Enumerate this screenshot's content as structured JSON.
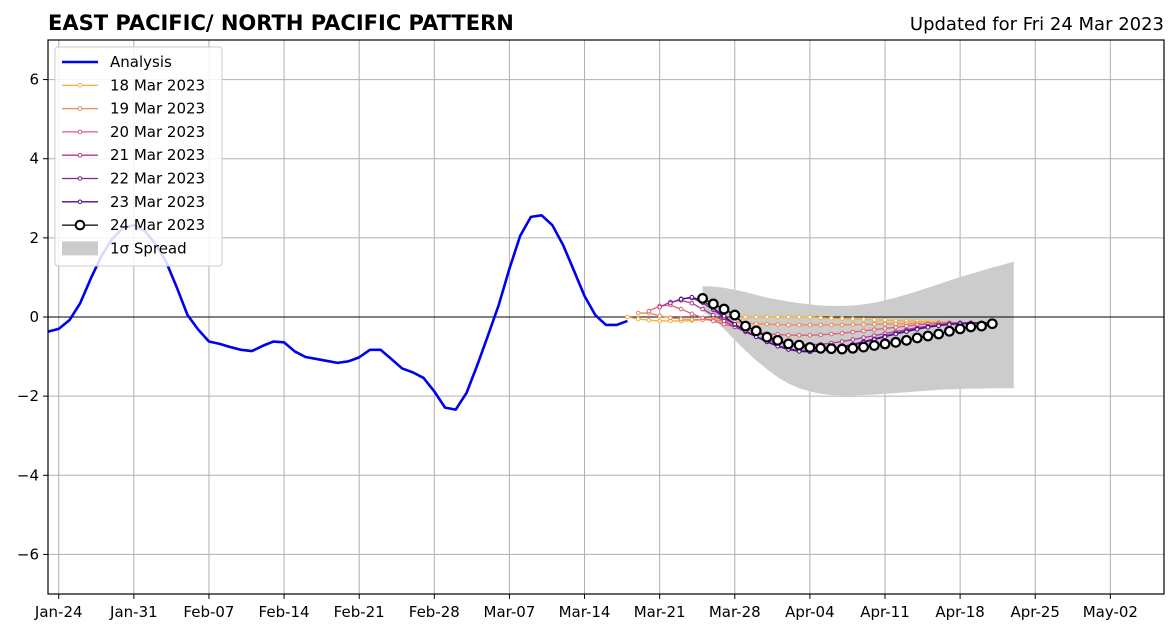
{
  "chart_data": {
    "type": "line",
    "title": "EAST PACIFIC/ NORTH PACIFIC PATTERN",
    "subtitle": "Updated for Fri 24 Mar 2023",
    "xlabel": "",
    "ylabel": "",
    "x_range": [
      "2023-01-23",
      "2023-05-07"
    ],
    "ylim": [
      -7,
      7
    ],
    "yticks": [
      -6,
      -4,
      -2,
      0,
      2,
      4,
      6
    ],
    "ytick_labels": [
      "−6",
      "−4",
      "−2",
      "0",
      "2",
      "4",
      "6"
    ],
    "xticks": [
      "2023-01-24",
      "2023-01-31",
      "2023-02-07",
      "2023-02-14",
      "2023-02-21",
      "2023-02-28",
      "2023-03-07",
      "2023-03-14",
      "2023-03-21",
      "2023-03-28",
      "2023-04-04",
      "2023-04-11",
      "2023-04-18",
      "2023-04-25",
      "2023-05-02"
    ],
    "xtick_labels": [
      "Jan-24",
      "Jan-31",
      "Feb-07",
      "Feb-14",
      "Feb-21",
      "Feb-28",
      "Mar-07",
      "Mar-14",
      "Mar-21",
      "Mar-28",
      "Apr-04",
      "Apr-11",
      "Apr-18",
      "Apr-25",
      "May-02"
    ],
    "grid": true,
    "zero_line": true,
    "legend_position": "upper-left",
    "analysis": {
      "name": "Analysis",
      "color": "#0000ee",
      "start": "2023-01-23",
      "values": [
        -0.37,
        -0.3,
        -0.08,
        0.35,
        0.98,
        1.55,
        1.98,
        2.25,
        2.32,
        2.18,
        1.85,
        1.4,
        0.75,
        0.05,
        -0.32,
        -0.62,
        -0.68,
        -0.76,
        -0.83,
        -0.86,
        -0.73,
        -0.62,
        -0.64,
        -0.87,
        -1.01,
        -1.06,
        -1.11,
        -1.16,
        -1.12,
        -1.02,
        -0.83,
        -0.83,
        -1.06,
        -1.3,
        -1.4,
        -1.54,
        -1.88,
        -2.29,
        -2.34,
        -1.92,
        -1.22,
        -0.47,
        0.3,
        1.22,
        2.05,
        2.53,
        2.57,
        2.32,
        1.82,
        1.18,
        0.53,
        0.05,
        -0.2,
        -0.2,
        -0.1
      ]
    },
    "forecasts": [
      {
        "name": "18 Mar 2023",
        "color": "#f5b142",
        "start": "2023-03-18",
        "values": [
          0.0,
          -0.05,
          -0.08,
          -0.1,
          -0.1,
          -0.1,
          -0.09,
          -0.07,
          -0.05,
          -0.03,
          -0.02,
          0.0,
          0.0,
          0.0,
          0.0,
          0.0,
          0.0,
          0.0,
          -0.02,
          -0.03,
          -0.04,
          -0.05,
          -0.06,
          -0.07,
          -0.08,
          -0.09,
          -0.1,
          -0.11,
          -0.12,
          -0.13,
          -0.14,
          -0.15,
          -0.15
        ]
      },
      {
        "name": "19 Mar 2023",
        "color": "#f08a4b",
        "start": "2023-03-19",
        "values": [
          0.1,
          0.1,
          0.03,
          -0.02,
          -0.05,
          -0.06,
          -0.07,
          -0.08,
          -0.1,
          -0.12,
          -0.15,
          -0.17,
          -0.18,
          -0.19,
          -0.2,
          -0.2,
          -0.2,
          -0.2,
          -0.2,
          -0.2,
          -0.19,
          -0.19,
          -0.18,
          -0.18,
          -0.17,
          -0.17,
          -0.16,
          -0.16,
          -0.15,
          -0.15,
          -0.15,
          -0.15,
          -0.15
        ]
      },
      {
        "name": "20 Mar 2023",
        "color": "#dd5e73",
        "start": "2023-03-20",
        "values": [
          0.15,
          0.28,
          0.3,
          0.2,
          0.08,
          -0.02,
          -0.1,
          -0.18,
          -0.25,
          -0.32,
          -0.38,
          -0.42,
          -0.44,
          -0.46,
          -0.46,
          -0.46,
          -0.45,
          -0.43,
          -0.41,
          -0.38,
          -0.35,
          -0.32,
          -0.29,
          -0.26,
          -0.23,
          -0.2,
          -0.18,
          -0.16,
          -0.15,
          -0.15,
          -0.15,
          -0.15,
          -0.15
        ]
      },
      {
        "name": "21 Mar 2023",
        "color": "#b03a8c",
        "start": "2023-03-21",
        "values": [
          0.25,
          0.38,
          0.42,
          0.35,
          0.2,
          0.05,
          -0.1,
          -0.25,
          -0.38,
          -0.5,
          -0.58,
          -0.64,
          -0.68,
          -0.7,
          -0.7,
          -0.69,
          -0.66,
          -0.62,
          -0.57,
          -0.52,
          -0.47,
          -0.42,
          -0.37,
          -0.32,
          -0.27,
          -0.23,
          -0.2,
          -0.18,
          -0.16,
          -0.15,
          -0.15,
          -0.15
        ]
      },
      {
        "name": "22 Mar 2023",
        "color": "#8222a0",
        "start": "2023-03-22",
        "values": [
          0.35,
          0.46,
          0.48,
          0.36,
          0.18,
          -0.02,
          -0.2,
          -0.36,
          -0.5,
          -0.62,
          -0.72,
          -0.8,
          -0.85,
          -0.86,
          -0.84,
          -0.8,
          -0.75,
          -0.69,
          -0.62,
          -0.55,
          -0.48,
          -0.41,
          -0.35,
          -0.29,
          -0.24,
          -0.2,
          -0.17,
          -0.15,
          -0.15,
          -0.15,
          -0.15
        ]
      },
      {
        "name": "23 Mar 2023",
        "color": "#4a0c84",
        "start": "2023-03-23",
        "values": [
          0.45,
          0.5,
          0.42,
          0.22,
          0.02,
          -0.18,
          -0.35,
          -0.5,
          -0.63,
          -0.74,
          -0.82,
          -0.87,
          -0.88,
          -0.86,
          -0.82,
          -0.77,
          -0.71,
          -0.64,
          -0.57,
          -0.5,
          -0.43,
          -0.37,
          -0.31,
          -0.26,
          -0.22,
          -0.19,
          -0.17,
          -0.16,
          -0.15,
          -0.15
        ]
      },
      {
        "name": "24 Mar 2023",
        "color": "#000000",
        "start": "2023-03-25",
        "values": [
          0.47,
          0.33,
          0.2,
          0.05,
          -0.23,
          -0.35,
          -0.51,
          -0.59,
          -0.68,
          -0.71,
          -0.77,
          -0.79,
          -0.8,
          -0.81,
          -0.79,
          -0.76,
          -0.72,
          -0.68,
          -0.64,
          -0.59,
          -0.53,
          -0.48,
          -0.43,
          -0.36,
          -0.3,
          -0.25,
          -0.23,
          -0.17
        ]
      }
    ],
    "spread": {
      "name": "1σ Spread",
      "color": "#cccccc",
      "start": "2023-03-25",
      "upper": [
        0.78,
        0.77,
        0.74,
        0.69,
        0.63,
        0.56,
        0.49,
        0.44,
        0.39,
        0.35,
        0.32,
        0.29,
        0.28,
        0.28,
        0.29,
        0.32,
        0.36,
        0.42,
        0.49,
        0.57,
        0.65,
        0.74,
        0.83,
        0.92,
        1.01,
        1.09,
        1.17,
        1.25,
        1.32,
        1.4
      ],
      "lower": [
        0.15,
        -0.05,
        -0.3,
        -0.58,
        -0.85,
        -1.1,
        -1.32,
        -1.52,
        -1.68,
        -1.8,
        -1.88,
        -1.94,
        -1.97,
        -1.98,
        -1.98,
        -1.97,
        -1.96,
        -1.94,
        -1.92,
        -1.9,
        -1.88,
        -1.86,
        -1.84,
        -1.83,
        -1.82,
        -1.81,
        -1.81,
        -1.8,
        -1.8,
        -1.8
      ]
    }
  }
}
